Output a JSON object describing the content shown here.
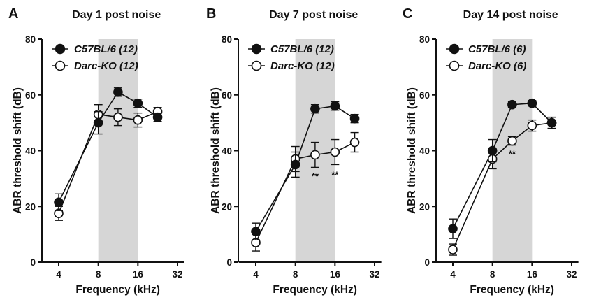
{
  "figure": {
    "ylabel": "ABR threshold shift (dB)",
    "xlabel": "Frequency (kHz)"
  },
  "chart_data": [
    {
      "type": "line",
      "panel_label": "A",
      "title": "Day 1 post noise",
      "xlabel": "Frequency (kHz)",
      "ylabel": "ABR threshold shift (dB)",
      "xscale": "log2",
      "xlim": [
        3.2,
        36
      ],
      "xticks": [
        4,
        8,
        16,
        32
      ],
      "ylim": [
        0,
        80
      ],
      "yticks": [
        0,
        20,
        40,
        60,
        80
      ],
      "shaded_band": [
        8,
        16
      ],
      "legend": "top-left",
      "series": [
        {
          "name": "C57BL/6 (12)",
          "marker": "filled",
          "x": [
            4,
            8,
            11.3,
            16,
            22.6
          ],
          "y": [
            21.5,
            50,
            61,
            57,
            52
          ],
          "err": [
            3,
            4,
            1.5,
            1.5,
            1.5
          ]
        },
        {
          "name": "Darc-KO (12)",
          "marker": "open",
          "x": [
            4,
            8,
            11.3,
            16,
            22.6
          ],
          "y": [
            17.5,
            53,
            52,
            51,
            54
          ],
          "err": [
            2.5,
            3.5,
            3,
            2.5,
            1.5
          ]
        }
      ],
      "annotations": []
    },
    {
      "type": "line",
      "panel_label": "B",
      "title": "Day 7 post noise",
      "xlabel": "Frequency (kHz)",
      "ylabel": "ABR threshold shift (dB)",
      "xscale": "log2",
      "xlim": [
        3.2,
        36
      ],
      "xticks": [
        4,
        8,
        16,
        32
      ],
      "ylim": [
        0,
        80
      ],
      "yticks": [
        0,
        20,
        40,
        60,
        80
      ],
      "shaded_band": [
        8,
        16
      ],
      "legend": "top-left",
      "series": [
        {
          "name": "C57BL/6 (12)",
          "marker": "filled",
          "x": [
            4,
            8,
            11.3,
            16,
            22.6
          ],
          "y": [
            11,
            35,
            55,
            56,
            51.5
          ],
          "err": [
            3,
            4.5,
            1.5,
            1.5,
            1.5
          ]
        },
        {
          "name": "Darc-KO (12)",
          "marker": "open",
          "x": [
            4,
            8,
            11.3,
            16,
            22.6
          ],
          "y": [
            7,
            37,
            38.5,
            39.5,
            43
          ],
          "err": [
            3,
            4.5,
            4.5,
            4.5,
            3.5
          ]
        }
      ],
      "annotations": [
        {
          "text": "**",
          "x": 11.3,
          "y": 31
        },
        {
          "text": "**",
          "x": 16,
          "y": 31.5
        }
      ]
    },
    {
      "type": "line",
      "panel_label": "C",
      "title": "Day 14 post noise",
      "xlabel": "Frequency (kHz)",
      "ylabel": "ABR threshold shift (dB)",
      "xscale": "log2",
      "xlim": [
        3.2,
        36
      ],
      "xticks": [
        4,
        8,
        16,
        32
      ],
      "ylim": [
        0,
        80
      ],
      "yticks": [
        0,
        20,
        40,
        60,
        80
      ],
      "shaded_band": [
        8,
        16
      ],
      "legend": "top-left",
      "series": [
        {
          "name": "C57BL/6 (6)",
          "marker": "filled",
          "x": [
            4,
            8,
            11.3,
            16,
            22.6
          ],
          "y": [
            12,
            40,
            56.5,
            57,
            50
          ],
          "err": [
            3.5,
            4,
            1,
            1,
            2
          ]
        },
        {
          "name": "Darc-KO (6)",
          "marker": "open",
          "x": [
            4,
            8,
            11.3,
            16,
            22.6
          ],
          "y": [
            4.5,
            37,
            43.5,
            49,
            50
          ],
          "err": [
            2,
            3.5,
            1.5,
            2,
            2
          ]
        }
      ],
      "annotations": [
        {
          "text": "**",
          "x": 11.3,
          "y": 39
        }
      ]
    }
  ]
}
